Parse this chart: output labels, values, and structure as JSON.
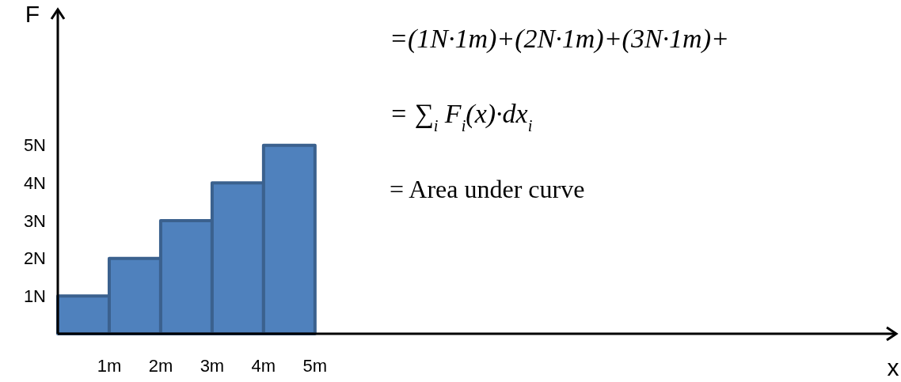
{
  "chart_data": {
    "type": "histogram",
    "xlabel": "x",
    "ylabel": "F",
    "bins": [
      0,
      1,
      2,
      3,
      4,
      5
    ],
    "values": [
      1,
      2,
      3,
      4,
      5
    ],
    "color": "#4f81bd",
    "xlim": [
      0,
      16.3
    ],
    "ylim": [
      0,
      8.6
    ],
    "xticks": [
      {
        "value": 1,
        "label": "1m"
      },
      {
        "value": 2,
        "label": "2m"
      },
      {
        "value": 3,
        "label": "3m"
      },
      {
        "value": 4,
        "label": "4m"
      },
      {
        "value": 5,
        "label": "5m"
      }
    ],
    "yticks": [
      {
        "value": 1,
        "label": "1N"
      },
      {
        "value": 2,
        "label": "2N"
      },
      {
        "value": 3,
        "label": "3N"
      },
      {
        "value": 4,
        "label": "4N"
      },
      {
        "value": 5,
        "label": "5N"
      }
    ],
    "annotations": [
      "=(1N·1m)+(2N·1m)+(3N·1m)+",
      "= ∑$_{i}$ F$_{i}$(x)·dx$_{i}$",
      "= Area under curve"
    ],
    "grid": false
  }
}
